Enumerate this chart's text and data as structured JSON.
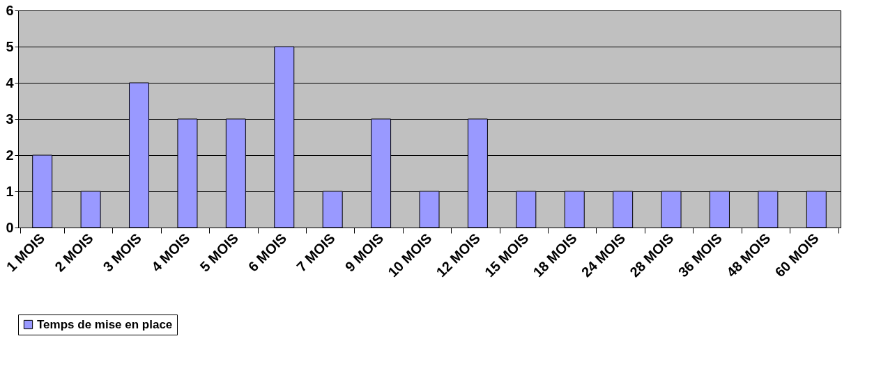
{
  "chart_data": {
    "type": "bar",
    "categories": [
      "1 MOIS",
      "2 MOIS",
      "3 MOIS",
      "4 MOIS",
      "5 MOIS",
      "6 MOIS",
      "7 MOIS",
      "9 MOIS",
      "10 MOIS",
      "12 MOIS",
      "15 MOIS",
      "18 MOIS",
      "24 MOIS",
      "28 MOIS",
      "36 MOIS",
      "48 MOIS",
      "60 MOIS"
    ],
    "series": [
      {
        "name": "Temps de mise en place",
        "color": "#9999ff",
        "values": [
          2,
          1,
          4,
          3,
          3,
          5,
          1,
          3,
          1,
          3,
          1,
          1,
          1,
          1,
          1,
          1,
          1
        ]
      }
    ],
    "ylim": [
      0,
      6
    ],
    "yticks": [
      0,
      1,
      2,
      3,
      4,
      5,
      6
    ],
    "grid": "y",
    "legend": "bottom"
  }
}
